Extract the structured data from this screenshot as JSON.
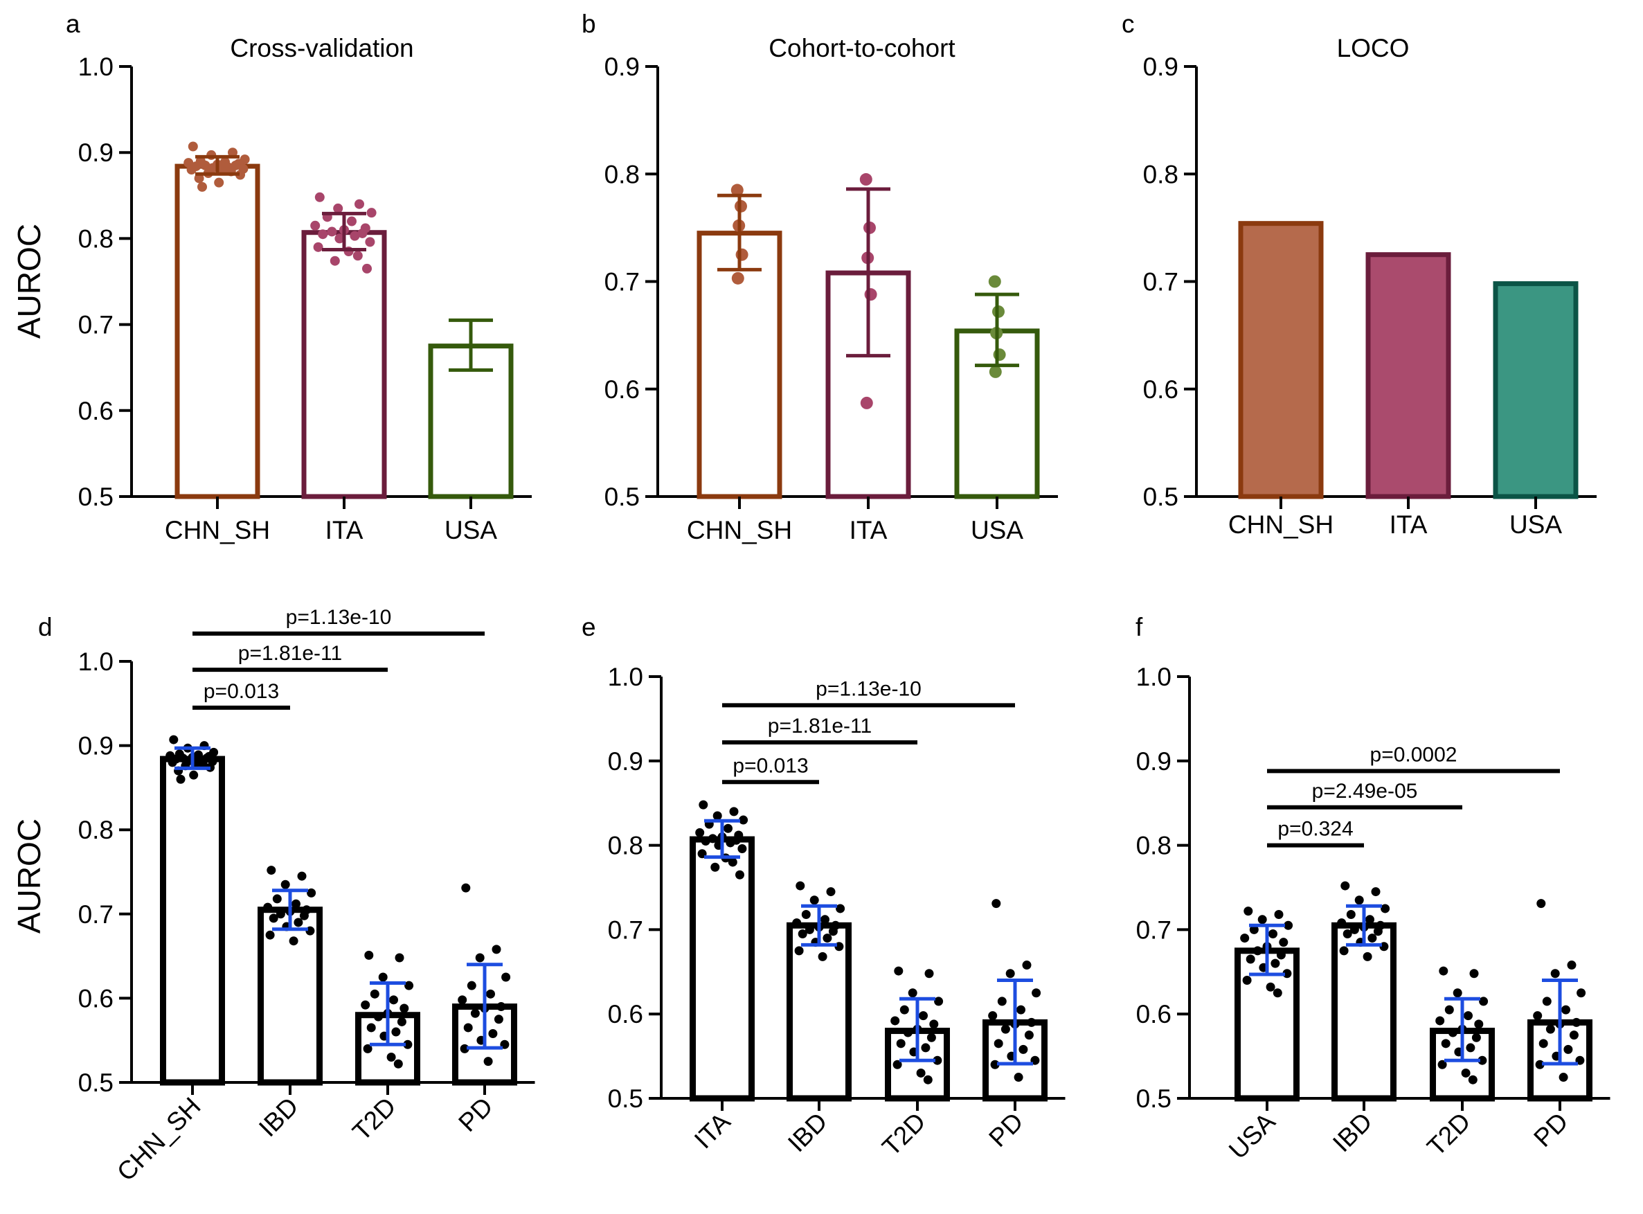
{
  "colors": {
    "axis": "#000000",
    "chn_sh": "#8b3a0f",
    "ita": "#6b1d3c",
    "usa": "#355a0c",
    "chn_sh_points": "#b05c3c",
    "ita_points": "#a8456a",
    "usa_points": "#6a8a3a",
    "loco_chn_sh_fill": "#b56a4c",
    "loco_ita_fill": "#aa4b6d",
    "loco_usa_fill": "#3b9682",
    "loco_usa_edge": "#0b5446",
    "bottom_bar": "#000000",
    "bottom_error": "#1d4de0",
    "bottom_points": "#000000"
  },
  "chart_data": [
    {
      "panel": "a",
      "type": "bar",
      "title": "Cross-validation",
      "ylabel": "AUROC",
      "ylim": [
        0.5,
        1.0
      ],
      "yticks": [
        "0.5",
        "0.6",
        "0.7",
        "0.8",
        "0.9",
        "1.0"
      ],
      "categories": [
        "CHN_SH",
        "ITA",
        "USA"
      ],
      "values": [
        0.884,
        0.807,
        0.675
      ],
      "error_low": [
        0.875,
        0.787,
        0.647
      ],
      "error_high": [
        0.895,
        0.829,
        0.705
      ],
      "points": [
        [
          0.907,
          0.9,
          0.897,
          0.892,
          0.89,
          0.889,
          0.888,
          0.887,
          0.886,
          0.885,
          0.885,
          0.884,
          0.883,
          0.882,
          0.881,
          0.88,
          0.879,
          0.878,
          0.876,
          0.874,
          0.87,
          0.865,
          0.86
        ],
        [
          0.848,
          0.84,
          0.835,
          0.83,
          0.825,
          0.82,
          0.815,
          0.812,
          0.81,
          0.808,
          0.806,
          0.805,
          0.803,
          0.8,
          0.796,
          0.79,
          0.785,
          0.78,
          0.774,
          0.765
        ],
        []
      ]
    },
    {
      "panel": "b",
      "type": "bar",
      "title": "Cohort-to-cohort",
      "ylabel": "",
      "ylim": [
        0.5,
        0.9
      ],
      "yticks": [
        "0.5",
        "0.6",
        "0.7",
        "0.8",
        "0.9"
      ],
      "categories": [
        "CHN_SH",
        "ITA",
        "USA"
      ],
      "values": [
        0.745,
        0.708,
        0.654
      ],
      "error_low": [
        0.711,
        0.631,
        0.622
      ],
      "error_high": [
        0.78,
        0.786,
        0.688
      ],
      "points": [
        [
          0.785,
          0.77,
          0.752,
          0.725,
          0.703
        ],
        [
          0.795,
          0.75,
          0.722,
          0.688,
          0.587
        ],
        [
          0.7,
          0.672,
          0.652,
          0.632,
          0.616
        ]
      ]
    },
    {
      "panel": "c",
      "type": "bar",
      "title": "LOCO",
      "ylabel": "",
      "ylim": [
        0.5,
        0.9
      ],
      "yticks": [
        "0.5",
        "0.6",
        "0.7",
        "0.8",
        "0.9"
      ],
      "categories": [
        "CHN_SH",
        "ITA",
        "USA"
      ],
      "values": [
        0.754,
        0.725,
        0.698
      ]
    },
    {
      "panel": "d",
      "type": "bar",
      "title": "",
      "ylabel": "AUROC",
      "ylim": [
        0.5,
        1.0
      ],
      "yticks": [
        "0.5",
        "0.6",
        "0.7",
        "0.8",
        "0.9",
        "1.0"
      ],
      "categories": [
        "CHN_SH",
        "IBD",
        "T2D",
        "PD"
      ],
      "values": [
        0.884,
        0.705,
        0.58,
        0.59
      ],
      "error_low": [
        0.873,
        0.682,
        0.545,
        0.541
      ],
      "error_high": [
        0.897,
        0.728,
        0.618,
        0.64
      ],
      "points": [
        [
          0.907,
          0.9,
          0.897,
          0.892,
          0.89,
          0.889,
          0.888,
          0.887,
          0.886,
          0.885,
          0.885,
          0.884,
          0.883,
          0.882,
          0.881,
          0.88,
          0.879,
          0.878,
          0.876,
          0.874,
          0.87,
          0.865,
          0.86
        ],
        [
          0.752,
          0.745,
          0.735,
          0.725,
          0.718,
          0.712,
          0.708,
          0.705,
          0.703,
          0.7,
          0.698,
          0.695,
          0.69,
          0.685,
          0.68,
          0.675,
          0.668
        ],
        [
          0.651,
          0.648,
          0.625,
          0.615,
          0.605,
          0.598,
          0.592,
          0.588,
          0.582,
          0.578,
          0.572,
          0.565,
          0.56,
          0.555,
          0.545,
          0.54,
          0.53,
          0.522
        ],
        [
          0.731,
          0.658,
          0.648,
          0.625,
          0.615,
          0.605,
          0.598,
          0.59,
          0.588,
          0.582,
          0.575,
          0.565,
          0.558,
          0.55,
          0.545,
          0.54,
          0.525
        ]
      ],
      "comparisons": [
        {
          "label": "p=0.013",
          "from": 0,
          "to": 1,
          "y": 0.945
        },
        {
          "label": "p=1.81e-11",
          "from": 0,
          "to": 2,
          "y": 0.99
        },
        {
          "label": "p=1.13e-10",
          "from": 0,
          "to": 3,
          "y": 1.033
        }
      ]
    },
    {
      "panel": "e",
      "type": "bar",
      "title": "",
      "ylabel": "",
      "ylim": [
        0.5,
        1.0
      ],
      "yticks": [
        "0.5",
        "0.6",
        "0.7",
        "0.8",
        "0.9",
        "1.0"
      ],
      "categories": [
        "ITA",
        "IBD",
        "T2D",
        "PD"
      ],
      "values": [
        0.807,
        0.705,
        0.58,
        0.59
      ],
      "error_low": [
        0.786,
        0.682,
        0.545,
        0.541
      ],
      "error_high": [
        0.829,
        0.728,
        0.618,
        0.64
      ],
      "points": [
        [
          0.848,
          0.84,
          0.835,
          0.83,
          0.825,
          0.82,
          0.815,
          0.812,
          0.81,
          0.808,
          0.806,
          0.805,
          0.803,
          0.8,
          0.796,
          0.79,
          0.785,
          0.78,
          0.774,
          0.765
        ],
        [
          0.752,
          0.745,
          0.735,
          0.725,
          0.718,
          0.712,
          0.708,
          0.705,
          0.703,
          0.7,
          0.698,
          0.695,
          0.69,
          0.685,
          0.68,
          0.675,
          0.668
        ],
        [
          0.651,
          0.648,
          0.625,
          0.615,
          0.605,
          0.598,
          0.592,
          0.588,
          0.582,
          0.578,
          0.572,
          0.565,
          0.56,
          0.555,
          0.545,
          0.54,
          0.53,
          0.522
        ],
        [
          0.731,
          0.658,
          0.648,
          0.625,
          0.615,
          0.605,
          0.598,
          0.59,
          0.588,
          0.582,
          0.575,
          0.565,
          0.558,
          0.55,
          0.545,
          0.54,
          0.525
        ]
      ],
      "comparisons": [
        {
          "label": "p=0.013",
          "from": 0,
          "to": 1,
          "y": 0.875
        },
        {
          "label": "p=1.81e-11",
          "from": 0,
          "to": 2,
          "y": 0.922
        },
        {
          "label": "p=1.13e-10",
          "from": 0,
          "to": 3,
          "y": 0.966
        }
      ]
    },
    {
      "panel": "f",
      "type": "bar",
      "title": "",
      "ylabel": "",
      "ylim": [
        0.5,
        1.0
      ],
      "yticks": [
        "0.5",
        "0.6",
        "0.7",
        "0.8",
        "0.9",
        "1.0"
      ],
      "categories": [
        "USA",
        "IBD",
        "T2D",
        "PD"
      ],
      "values": [
        0.675,
        0.705,
        0.58,
        0.59
      ],
      "error_low": [
        0.647,
        0.682,
        0.545,
        0.541
      ],
      "error_high": [
        0.705,
        0.728,
        0.618,
        0.64
      ],
      "points": [
        [
          0.722,
          0.718,
          0.712,
          0.705,
          0.7,
          0.695,
          0.69,
          0.685,
          0.68,
          0.675,
          0.67,
          0.665,
          0.66,
          0.655,
          0.648,
          0.64,
          0.632,
          0.625
        ],
        [
          0.752,
          0.745,
          0.735,
          0.725,
          0.718,
          0.712,
          0.708,
          0.705,
          0.703,
          0.7,
          0.698,
          0.695,
          0.69,
          0.685,
          0.68,
          0.675,
          0.668
        ],
        [
          0.651,
          0.648,
          0.625,
          0.615,
          0.605,
          0.598,
          0.592,
          0.588,
          0.582,
          0.578,
          0.572,
          0.565,
          0.56,
          0.555,
          0.545,
          0.54,
          0.53,
          0.522
        ],
        [
          0.731,
          0.658,
          0.648,
          0.625,
          0.615,
          0.605,
          0.598,
          0.59,
          0.588,
          0.582,
          0.575,
          0.565,
          0.558,
          0.55,
          0.545,
          0.54,
          0.525
        ]
      ],
      "comparisons": [
        {
          "label": "p=0.324",
          "from": 0,
          "to": 1,
          "y": 0.8
        },
        {
          "label": "p=2.49e-05",
          "from": 0,
          "to": 2,
          "y": 0.845
        },
        {
          "label": "p=0.0002",
          "from": 0,
          "to": 3,
          "y": 0.888
        }
      ]
    }
  ]
}
